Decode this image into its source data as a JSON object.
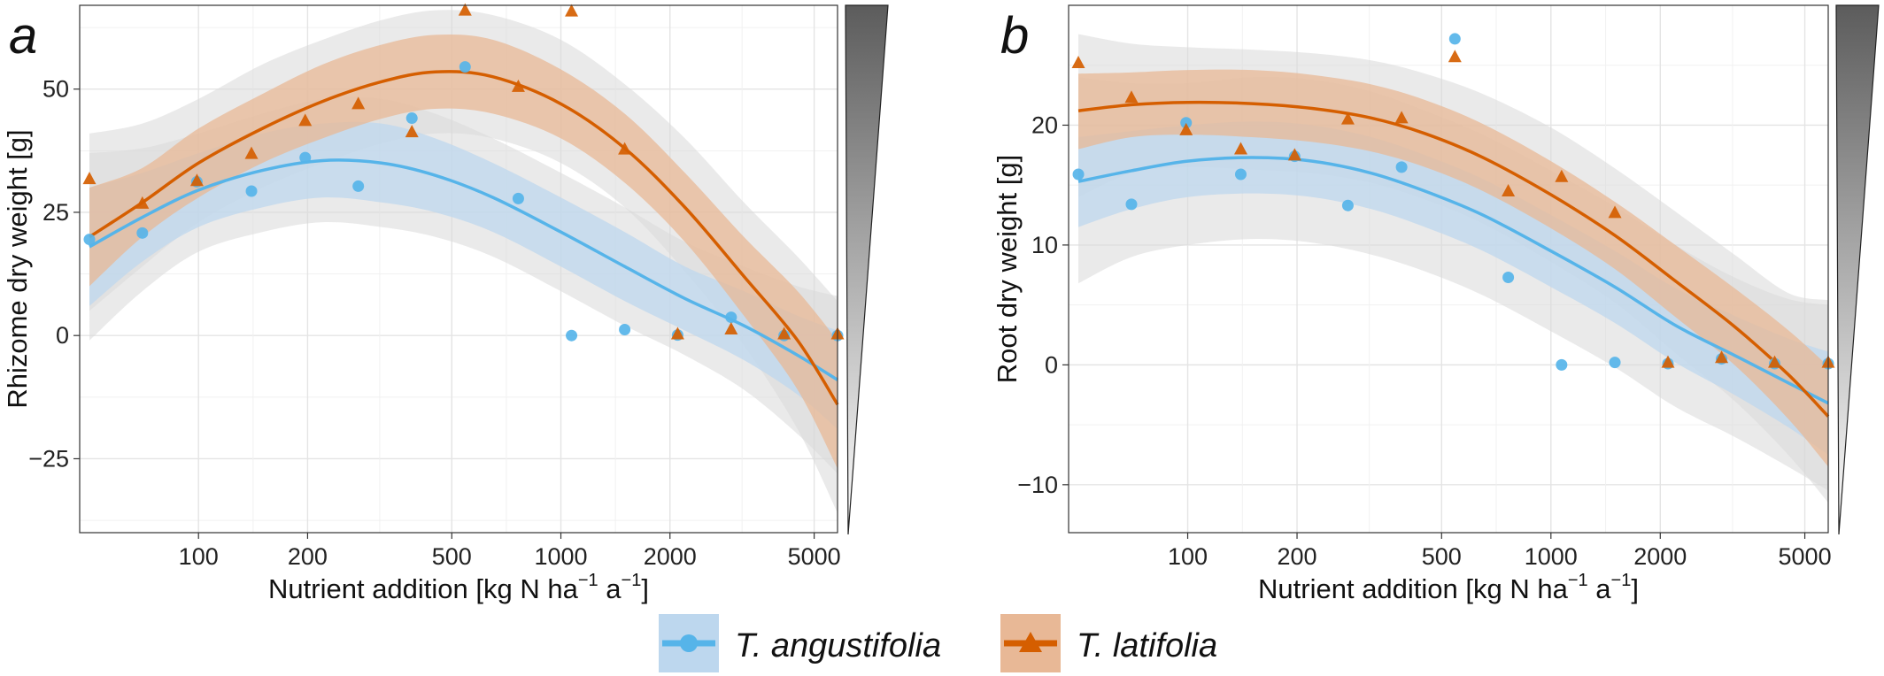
{
  "figure": {
    "legend": {
      "position": "bottom-center",
      "items": [
        {
          "label": "T. angustifolia",
          "color": "#56B4E9",
          "band_color": "#BDD7EE",
          "marker": "circle"
        },
        {
          "label": "T. latifolia",
          "color": "#D55E00",
          "band_color": "#E8B896",
          "marker": "triangle"
        }
      ]
    },
    "wedge_legend": {
      "description": "grey gradient wedge",
      "top_color": "#5c5c5c",
      "bottom_color": "#ffffff"
    }
  },
  "chart_data": [
    {
      "type": "scatter",
      "panel_letter": "a",
      "xlabel_main": "Nutrient addition [kg N ha",
      "xlabel_sup1": "−1",
      "xlabel_mid": " a",
      "xlabel_sup2": "−1",
      "xlabel_end": "]",
      "ylabel": "Rhizome dry weight [g]",
      "x_scale": "log",
      "xlim": [
        47,
        5800
      ],
      "ylim": [
        -40,
        67
      ],
      "x_ticks": [
        100,
        200,
        500,
        1000,
        2000,
        5000
      ],
      "x_tick_labels": [
        "100",
        "200",
        "500",
        "1000",
        "2000",
        "5000"
      ],
      "y_ticks": [
        -25,
        0,
        25,
        50
      ],
      "y_tick_labels": [
        "−25",
        "0",
        "25",
        "50"
      ],
      "grid": true,
      "series": [
        {
          "name": "T. angustifolia",
          "color": "#56B4E9",
          "marker": "circle",
          "points": [
            {
              "x": 50,
              "y": 19.5
            },
            {
              "x": 70,
              "y": 20.8
            },
            {
              "x": 99,
              "y": 31.2
            },
            {
              "x": 140,
              "y": 29.3
            },
            {
              "x": 197,
              "y": 36.1
            },
            {
              "x": 276,
              "y": 30.3
            },
            {
              "x": 388,
              "y": 44.1
            },
            {
              "x": 544,
              "y": 54.5
            },
            {
              "x": 763,
              "y": 27.8
            },
            {
              "x": 1070,
              "y": 0.0
            },
            {
              "x": 1500,
              "y": 1.2
            },
            {
              "x": 2100,
              "y": 0.1
            },
            {
              "x": 2950,
              "y": 3.7
            },
            {
              "x": 4130,
              "y": 0.0
            },
            {
              "x": 5800,
              "y": 0.0
            }
          ],
          "fit": [
            {
              "x": 50,
              "y": 18,
              "lo": 6,
              "hi": 30,
              "olo": -1,
              "ohi": 37
            },
            {
              "x": 70,
              "y": 24,
              "lo": 15,
              "hi": 33,
              "olo": 9,
              "ohi": 38
            },
            {
              "x": 100,
              "y": 29.5,
              "lo": 22,
              "hi": 37,
              "olo": 17,
              "ohi": 41
            },
            {
              "x": 150,
              "y": 33.5,
              "lo": 26,
              "hi": 41,
              "olo": 21,
              "ohi": 45
            },
            {
              "x": 220,
              "y": 35.5,
              "lo": 28,
              "hi": 43,
              "olo": 23,
              "ohi": 48
            },
            {
              "x": 320,
              "y": 35,
              "lo": 27,
              "hi": 43,
              "olo": 22,
              "ohi": 48
            },
            {
              "x": 450,
              "y": 32.5,
              "lo": 25,
              "hi": 40,
              "olo": 20,
              "ohi": 45
            },
            {
              "x": 650,
              "y": 28,
              "lo": 21,
              "hi": 35,
              "olo": 16,
              "ohi": 40
            },
            {
              "x": 1000,
              "y": 21,
              "lo": 14,
              "hi": 28,
              "olo": 9,
              "ohi": 33
            },
            {
              "x": 1500,
              "y": 14,
              "lo": 7,
              "hi": 21,
              "olo": 2,
              "ohi": 26
            },
            {
              "x": 2200,
              "y": 7.5,
              "lo": 1,
              "hi": 14,
              "olo": -4,
              "ohi": 19
            },
            {
              "x": 3200,
              "y": 2,
              "lo": -5,
              "hi": 9,
              "olo": -11,
              "ohi": 14
            },
            {
              "x": 4500,
              "y": -4,
              "lo": -12,
              "hi": 4,
              "olo": -20,
              "ohi": 10
            },
            {
              "x": 5800,
              "y": -9,
              "lo": -19,
              "hi": 1,
              "olo": -28,
              "ohi": 8
            }
          ]
        },
        {
          "name": "T. latifolia",
          "color": "#D55E00",
          "marker": "triangle",
          "points": [
            {
              "x": 50,
              "y": 31.8
            },
            {
              "x": 70,
              "y": 26.8
            },
            {
              "x": 99,
              "y": 31.4
            },
            {
              "x": 140,
              "y": 36.9
            },
            {
              "x": 197,
              "y": 43.6
            },
            {
              "x": 276,
              "y": 47.0
            },
            {
              "x": 388,
              "y": 41.3
            },
            {
              "x": 544,
              "y": 66.0
            },
            {
              "x": 763,
              "y": 50.5
            },
            {
              "x": 1070,
              "y": 65.8
            },
            {
              "x": 1500,
              "y": 37.8
            },
            {
              "x": 2100,
              "y": 0.3
            },
            {
              "x": 2950,
              "y": 1.3
            },
            {
              "x": 4130,
              "y": 0.3
            },
            {
              "x": 5800,
              "y": 0.3
            }
          ],
          "fit": [
            {
              "x": 50,
              "y": 20,
              "lo": 10,
              "hi": 30,
              "olo": 5,
              "ohi": 41
            },
            {
              "x": 70,
              "y": 27,
              "lo": 20,
              "hi": 34,
              "olo": 14,
              "ohi": 43
            },
            {
              "x": 100,
              "y": 35,
              "lo": 28,
              "hi": 42,
              "olo": 23,
              "ohi": 48
            },
            {
              "x": 150,
              "y": 42,
              "lo": 35,
              "hi": 49,
              "olo": 30,
              "ohi": 55
            },
            {
              "x": 220,
              "y": 47.5,
              "lo": 40,
              "hi": 55,
              "olo": 35,
              "ohi": 60
            },
            {
              "x": 320,
              "y": 51.5,
              "lo": 44,
              "hi": 59,
              "olo": 39,
              "ohi": 64
            },
            {
              "x": 450,
              "y": 53.5,
              "lo": 46,
              "hi": 61,
              "olo": 41,
              "ohi": 66
            },
            {
              "x": 650,
              "y": 52.5,
              "lo": 45,
              "hi": 60,
              "olo": 40,
              "ohi": 65
            },
            {
              "x": 1000,
              "y": 47,
              "lo": 40,
              "hi": 54,
              "olo": 35,
              "ohi": 60
            },
            {
              "x": 1500,
              "y": 38,
              "lo": 31,
              "hi": 45,
              "olo": 26,
              "ohi": 51
            },
            {
              "x": 2200,
              "y": 26,
              "lo": 19,
              "hi": 33,
              "olo": 13,
              "ohi": 40
            },
            {
              "x": 3200,
              "y": 12,
              "lo": 4,
              "hi": 20,
              "olo": -2,
              "ohi": 27
            },
            {
              "x": 4500,
              "y": -1,
              "lo": -11,
              "hi": 9,
              "olo": -19,
              "ohi": 16
            },
            {
              "x": 5800,
              "y": -14,
              "lo": -27,
              "hi": -1,
              "olo": -36,
              "ohi": 7
            }
          ]
        }
      ]
    },
    {
      "type": "scatter",
      "panel_letter": "b",
      "xlabel_main": "Nutrient addition [kg N ha",
      "xlabel_sup1": "−1",
      "xlabel_mid": " a",
      "xlabel_sup2": "−1",
      "xlabel_end": "]",
      "ylabel": "Root dry weight [g]",
      "x_scale": "log",
      "xlim": [
        47,
        5800
      ],
      "ylim": [
        -14,
        30
      ],
      "x_ticks": [
        100,
        200,
        500,
        1000,
        2000,
        5000
      ],
      "x_tick_labels": [
        "100",
        "200",
        "500",
        "1000",
        "2000",
        "5000"
      ],
      "y_ticks": [
        -10,
        0,
        10,
        20
      ],
      "y_tick_labels": [
        "−10",
        "0",
        "10",
        "20"
      ],
      "grid": true,
      "series": [
        {
          "name": "T. angustifolia",
          "color": "#56B4E9",
          "marker": "circle",
          "points": [
            {
              "x": 50,
              "y": 15.9
            },
            {
              "x": 70,
              "y": 13.4
            },
            {
              "x": 99,
              "y": 20.2
            },
            {
              "x": 140,
              "y": 15.9
            },
            {
              "x": 197,
              "y": 17.4
            },
            {
              "x": 276,
              "y": 13.3
            },
            {
              "x": 388,
              "y": 16.5
            },
            {
              "x": 544,
              "y": 27.2
            },
            {
              "x": 763,
              "y": 7.3
            },
            {
              "x": 1070,
              "y": 0.0
            },
            {
              "x": 1500,
              "y": 0.2
            },
            {
              "x": 2100,
              "y": 0.1
            },
            {
              "x": 2950,
              "y": 0.5
            },
            {
              "x": 4130,
              "y": 0.1
            },
            {
              "x": 5800,
              "y": 0.1
            }
          ],
          "fit": [
            {
              "x": 50,
              "y": 15.3,
              "lo": 11.5,
              "hi": 19,
              "olo": 6.8,
              "ohi": 24
            },
            {
              "x": 70,
              "y": 16.2,
              "lo": 13,
              "hi": 19.5,
              "olo": 9,
              "ohi": 23.5
            },
            {
              "x": 100,
              "y": 17,
              "lo": 14,
              "hi": 20,
              "olo": 10,
              "ohi": 23.5
            },
            {
              "x": 150,
              "y": 17.3,
              "lo": 14.3,
              "hi": 20.3,
              "olo": 10.5,
              "ohi": 24
            },
            {
              "x": 220,
              "y": 17,
              "lo": 14,
              "hi": 20,
              "olo": 10.2,
              "ohi": 23.8
            },
            {
              "x": 320,
              "y": 16,
              "lo": 13,
              "hi": 19,
              "olo": 9.2,
              "ohi": 22.8
            },
            {
              "x": 450,
              "y": 14.5,
              "lo": 11.5,
              "hi": 17.5,
              "olo": 7.8,
              "ohi": 21.2
            },
            {
              "x": 650,
              "y": 12.5,
              "lo": 9.5,
              "hi": 15.5,
              "olo": 5.8,
              "ohi": 19.2
            },
            {
              "x": 1000,
              "y": 9.5,
              "lo": 6.5,
              "hi": 12.5,
              "olo": 2.8,
              "ohi": 16.2
            },
            {
              "x": 1500,
              "y": 6.5,
              "lo": 3.5,
              "hi": 9.5,
              "olo": -0.2,
              "ohi": 13.2
            },
            {
              "x": 2200,
              "y": 3.3,
              "lo": 0.2,
              "hi": 6.4,
              "olo": -3.5,
              "ohi": 10
            },
            {
              "x": 3200,
              "y": 0.8,
              "lo": -2.5,
              "hi": 4.1,
              "olo": -6,
              "ohi": 7.3
            },
            {
              "x": 4500,
              "y": -1.5,
              "lo": -5.2,
              "hi": 2.2,
              "olo": -8.5,
              "ohi": 5.5
            },
            {
              "x": 5800,
              "y": -3.2,
              "lo": -7.5,
              "hi": 1.1,
              "olo": -10.5,
              "ohi": 5
            }
          ]
        },
        {
          "name": "T. latifolia",
          "color": "#D55E00",
          "marker": "triangle",
          "points": [
            {
              "x": 50,
              "y": 25.2
            },
            {
              "x": 70,
              "y": 22.3
            },
            {
              "x": 99,
              "y": 19.6
            },
            {
              "x": 140,
              "y": 18.0
            },
            {
              "x": 197,
              "y": 17.5
            },
            {
              "x": 276,
              "y": 20.5
            },
            {
              "x": 388,
              "y": 20.6
            },
            {
              "x": 544,
              "y": 25.7
            },
            {
              "x": 763,
              "y": 14.5
            },
            {
              "x": 1070,
              "y": 15.7
            },
            {
              "x": 1500,
              "y": 12.7
            },
            {
              "x": 2100,
              "y": 0.2
            },
            {
              "x": 2950,
              "y": 0.6
            },
            {
              "x": 4130,
              "y": 0.2
            },
            {
              "x": 5800,
              "y": 0.2
            }
          ],
          "fit": [
            {
              "x": 50,
              "y": 21.2,
              "lo": 18,
              "hi": 24.3,
              "olo": 14,
              "ohi": 27.6
            },
            {
              "x": 70,
              "y": 21.7,
              "lo": 19,
              "hi": 24.4,
              "olo": 16,
              "ohi": 26.8
            },
            {
              "x": 100,
              "y": 21.9,
              "lo": 19.2,
              "hi": 24.6,
              "olo": 16.5,
              "ohi": 26.5
            },
            {
              "x": 150,
              "y": 21.8,
              "lo": 19,
              "hi": 24.6,
              "olo": 16.3,
              "ohi": 26.3
            },
            {
              "x": 220,
              "y": 21.4,
              "lo": 18.6,
              "hi": 24.2,
              "olo": 16,
              "ohi": 26
            },
            {
              "x": 320,
              "y": 20.6,
              "lo": 17.8,
              "hi": 23.4,
              "olo": 15.2,
              "ohi": 25.4
            },
            {
              "x": 450,
              "y": 19.3,
              "lo": 16.5,
              "hi": 22.1,
              "olo": 13.8,
              "ohi": 24.3
            },
            {
              "x": 650,
              "y": 17.3,
              "lo": 14.5,
              "hi": 20.1,
              "olo": 11.8,
              "ohi": 22.6
            },
            {
              "x": 1000,
              "y": 14.2,
              "lo": 11.4,
              "hi": 17,
              "olo": 8.6,
              "ohi": 19.8
            },
            {
              "x": 1500,
              "y": 10.8,
              "lo": 8,
              "hi": 13.6,
              "olo": 5.2,
              "ohi": 16.4
            },
            {
              "x": 2200,
              "y": 7,
              "lo": 4,
              "hi": 10,
              "olo": 1,
              "ohi": 12.8
            },
            {
              "x": 3200,
              "y": 3.2,
              "lo": 0,
              "hi": 6.4,
              "olo": -3,
              "ohi": 9.2
            },
            {
              "x": 4500,
              "y": -0.8,
              "lo": -4.5,
              "hi": 2.9,
              "olo": -7.5,
              "ohi": 6
            },
            {
              "x": 5800,
              "y": -4.3,
              "lo": -8.5,
              "hi": -0.1,
              "olo": -11.5,
              "ohi": 5.4
            }
          ]
        }
      ]
    }
  ]
}
